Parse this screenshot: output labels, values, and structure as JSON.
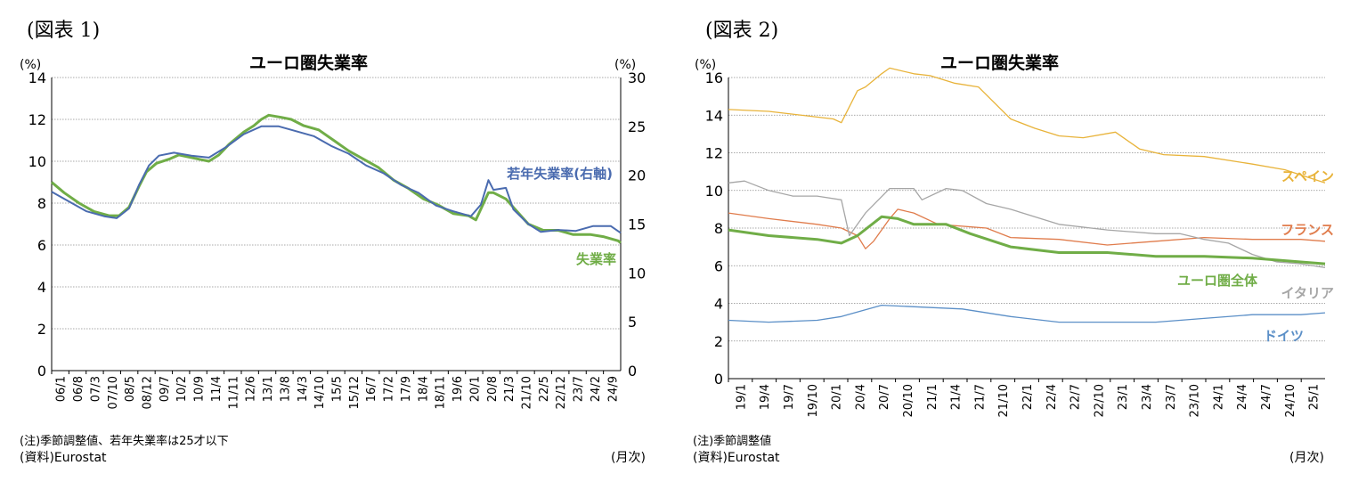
{
  "chart1": {
    "fig_label": "(図表 1)",
    "title": "ユーロ圏失業率",
    "left_unit": "(%)",
    "right_unit": "(%)",
    "note": "(注)季節調整値、若年失業率は25才以下",
    "source": "(資料)Eurostat",
    "period_label": "(月次)"
  },
  "chart2": {
    "fig_label": "(図表 2)",
    "title": "ユーロ圏失業率",
    "left_unit": "(%)",
    "note": "(注)季節調整値",
    "source": "(資料)Eurostat",
    "period_label": "(月次)"
  },
  "chart_data": [
    {
      "type": "line",
      "title": "ユーロ圏失業率",
      "x_start": "2006-01",
      "x_end": "2025-01",
      "x_tick_labels": [
        "06/1",
        "06/8",
        "07/3",
        "07/10",
        "08/5",
        "08/12",
        "09/7",
        "10/2",
        "10/9",
        "11/4",
        "11/11",
        "12/6",
        "13/1",
        "13/8",
        "14/3",
        "14/10",
        "15/5",
        "15/12",
        "16/7",
        "17/2",
        "17/9",
        "18/4",
        "18/11",
        "19/6",
        "20/1",
        "20/8",
        "21/3",
        "21/10",
        "22/5",
        "22/12",
        "23/7",
        "24/2",
        "24/9"
      ],
      "y_left": {
        "min": 0,
        "max": 14,
        "ticks": [
          0,
          2,
          4,
          6,
          8,
          10,
          12,
          14
        ]
      },
      "y_right": {
        "min": 0,
        "max": 30,
        "ticks": [
          0,
          5,
          10,
          15,
          20,
          25,
          30
        ]
      },
      "grid": true,
      "series": [
        {
          "name": "失業率",
          "axis": "left",
          "color": "#70ad47",
          "points": [
            [
              "2006-01",
              9.0
            ],
            [
              "2006-06",
              8.5
            ],
            [
              "2006-12",
              8.0
            ],
            [
              "2007-06",
              7.6
            ],
            [
              "2007-12",
              7.4
            ],
            [
              "2008-04",
              7.4
            ],
            [
              "2008-08",
              7.8
            ],
            [
              "2008-12",
              8.8
            ],
            [
              "2009-03",
              9.5
            ],
            [
              "2009-07",
              9.9
            ],
            [
              "2009-12",
              10.1
            ],
            [
              "2010-04",
              10.3
            ],
            [
              "2010-12",
              10.1
            ],
            [
              "2011-04",
              10.0
            ],
            [
              "2011-08",
              10.3
            ],
            [
              "2011-12",
              10.8
            ],
            [
              "2012-06",
              11.4
            ],
            [
              "2012-10",
              11.7
            ],
            [
              "2013-01",
              12.0
            ],
            [
              "2013-04",
              12.2
            ],
            [
              "2013-09",
              12.1
            ],
            [
              "2014-01",
              12.0
            ],
            [
              "2014-06",
              11.7
            ],
            [
              "2014-12",
              11.5
            ],
            [
              "2015-06",
              11.0
            ],
            [
              "2015-12",
              10.5
            ],
            [
              "2016-06",
              10.1
            ],
            [
              "2016-12",
              9.7
            ],
            [
              "2017-06",
              9.1
            ],
            [
              "2017-12",
              8.7
            ],
            [
              "2018-06",
              8.2
            ],
            [
              "2018-12",
              7.9
            ],
            [
              "2019-06",
              7.5
            ],
            [
              "2019-12",
              7.4
            ],
            [
              "2020-03",
              7.2
            ],
            [
              "2020-08",
              8.5
            ],
            [
              "2020-10",
              8.5
            ],
            [
              "2021-03",
              8.2
            ],
            [
              "2021-06",
              7.8
            ],
            [
              "2021-12",
              7.0
            ],
            [
              "2022-06",
              6.7
            ],
            [
              "2022-12",
              6.7
            ],
            [
              "2023-06",
              6.5
            ],
            [
              "2024-01",
              6.5
            ],
            [
              "2024-06",
              6.4
            ],
            [
              "2024-12",
              6.2
            ],
            [
              "2025-01",
              6.1
            ]
          ]
        },
        {
          "name": "若年失業率(右軸)",
          "axis": "right",
          "color": "#4a6baf",
          "points": [
            [
              "2006-01",
              18.3
            ],
            [
              "2006-08",
              17.3
            ],
            [
              "2007-03",
              16.3
            ],
            [
              "2007-10",
              15.8
            ],
            [
              "2008-03",
              15.6
            ],
            [
              "2008-08",
              16.6
            ],
            [
              "2008-12",
              19.0
            ],
            [
              "2009-04",
              21.0
            ],
            [
              "2009-08",
              22.0
            ],
            [
              "2010-02",
              22.3
            ],
            [
              "2010-09",
              22.0
            ],
            [
              "2011-04",
              21.8
            ],
            [
              "2011-11",
              22.9
            ],
            [
              "2012-06",
              24.2
            ],
            [
              "2013-01",
              25.0
            ],
            [
              "2013-08",
              25.0
            ],
            [
              "2014-03",
              24.5
            ],
            [
              "2014-10",
              24.0
            ],
            [
              "2015-05",
              23.0
            ],
            [
              "2015-12",
              22.2
            ],
            [
              "2016-07",
              21.0
            ],
            [
              "2017-02",
              20.2
            ],
            [
              "2017-09",
              19.0
            ],
            [
              "2018-04",
              18.2
            ],
            [
              "2018-11",
              16.9
            ],
            [
              "2019-06",
              16.3
            ],
            [
              "2020-01",
              15.8
            ],
            [
              "2020-05",
              17.0
            ],
            [
              "2020-08",
              19.5
            ],
            [
              "2020-10",
              18.5
            ],
            [
              "2021-03",
              18.7
            ],
            [
              "2021-06",
              16.5
            ],
            [
              "2021-12",
              15.0
            ],
            [
              "2022-05",
              14.2
            ],
            [
              "2022-12",
              14.4
            ],
            [
              "2023-07",
              14.3
            ],
            [
              "2024-02",
              14.8
            ],
            [
              "2024-09",
              14.8
            ],
            [
              "2025-01",
              14.1
            ]
          ]
        }
      ]
    },
    {
      "type": "line",
      "title": "ユーロ圏失業率",
      "x_start": "2019-01",
      "x_end": "2025-03",
      "x_tick_labels": [
        "19/1",
        "19/4",
        "19/7",
        "19/10",
        "20/1",
        "20/4",
        "20/7",
        "20/10",
        "21/1",
        "21/4",
        "21/7",
        "21/10",
        "22/1",
        "22/4",
        "22/7",
        "22/10",
        "23/1",
        "23/4",
        "23/7",
        "23/10",
        "24/1",
        "24/4",
        "24/7",
        "24/10",
        "25/1"
      ],
      "y_left": {
        "min": 0,
        "max": 16,
        "ticks": [
          0,
          2,
          4,
          6,
          8,
          10,
          12,
          14,
          16
        ]
      },
      "grid": true,
      "series": [
        {
          "name": "スペイン",
          "color": "#e8b33a",
          "points": [
            [
              "2019-01",
              14.3
            ],
            [
              "2019-06",
              14.2
            ],
            [
              "2019-12",
              13.9
            ],
            [
              "2020-02",
              13.8
            ],
            [
              "2020-03",
              13.6
            ],
            [
              "2020-05",
              15.3
            ],
            [
              "2020-06",
              15.5
            ],
            [
              "2020-08",
              16.2
            ],
            [
              "2020-09",
              16.5
            ],
            [
              "2020-12",
              16.2
            ],
            [
              "2021-02",
              16.1
            ],
            [
              "2021-05",
              15.7
            ],
            [
              "2021-08",
              15.5
            ],
            [
              "2021-12",
              13.8
            ],
            [
              "2022-03",
              13.3
            ],
            [
              "2022-06",
              12.9
            ],
            [
              "2022-09",
              12.8
            ],
            [
              "2023-01",
              13.1
            ],
            [
              "2023-04",
              12.2
            ],
            [
              "2023-07",
              11.9
            ],
            [
              "2023-12",
              11.8
            ],
            [
              "2024-06",
              11.4
            ],
            [
              "2024-10",
              11.1
            ],
            [
              "2025-03",
              10.4
            ]
          ]
        },
        {
          "name": "フランス",
          "color": "#e07c4c",
          "points": [
            [
              "2019-01",
              8.8
            ],
            [
              "2019-06",
              8.5
            ],
            [
              "2019-12",
              8.2
            ],
            [
              "2020-03",
              8.0
            ],
            [
              "2020-05",
              7.6
            ],
            [
              "2020-06",
              6.9
            ],
            [
              "2020-07",
              7.3
            ],
            [
              "2020-09",
              8.5
            ],
            [
              "2020-10",
              9.0
            ],
            [
              "2020-12",
              8.8
            ],
            [
              "2021-03",
              8.2
            ],
            [
              "2021-09",
              8.0
            ],
            [
              "2021-12",
              7.5
            ],
            [
              "2022-06",
              7.4
            ],
            [
              "2022-12",
              7.1
            ],
            [
              "2023-06",
              7.3
            ],
            [
              "2023-12",
              7.5
            ],
            [
              "2024-06",
              7.4
            ],
            [
              "2024-12",
              7.4
            ],
            [
              "2025-03",
              7.3
            ]
          ]
        },
        {
          "name": "イタリア",
          "color": "#a6a6a6",
          "points": [
            [
              "2019-01",
              10.4
            ],
            [
              "2019-03",
              10.5
            ],
            [
              "2019-06",
              10.0
            ],
            [
              "2019-09",
              9.7
            ],
            [
              "2019-12",
              9.7
            ],
            [
              "2020-03",
              9.5
            ],
            [
              "2020-04",
              7.6
            ],
            [
              "2020-06",
              8.8
            ],
            [
              "2020-09",
              10.1
            ],
            [
              "2020-12",
              10.1
            ],
            [
              "2021-01",
              9.5
            ],
            [
              "2021-04",
              10.1
            ],
            [
              "2021-06",
              10.0
            ],
            [
              "2021-09",
              9.3
            ],
            [
              "2021-12",
              9.0
            ],
            [
              "2022-06",
              8.2
            ],
            [
              "2022-12",
              7.9
            ],
            [
              "2023-06",
              7.7
            ],
            [
              "2023-09",
              7.7
            ],
            [
              "2023-12",
              7.4
            ],
            [
              "2024-03",
              7.2
            ],
            [
              "2024-06",
              6.6
            ],
            [
              "2024-09",
              6.2
            ],
            [
              "2024-12",
              6.1
            ],
            [
              "2025-03",
              5.9
            ]
          ]
        },
        {
          "name": "ユーロ圏全体",
          "color": "#70ad47",
          "points": [
            [
              "2019-01",
              7.9
            ],
            [
              "2019-06",
              7.6
            ],
            [
              "2019-12",
              7.4
            ],
            [
              "2020-03",
              7.2
            ],
            [
              "2020-05",
              7.6
            ],
            [
              "2020-08",
              8.6
            ],
            [
              "2020-10",
              8.5
            ],
            [
              "2020-12",
              8.2
            ],
            [
              "2021-04",
              8.2
            ],
            [
              "2021-07",
              7.7
            ],
            [
              "2021-12",
              7.0
            ],
            [
              "2022-06",
              6.7
            ],
            [
              "2022-12",
              6.7
            ],
            [
              "2023-06",
              6.5
            ],
            [
              "2023-12",
              6.5
            ],
            [
              "2024-06",
              6.4
            ],
            [
              "2024-12",
              6.2
            ],
            [
              "2025-03",
              6.1
            ]
          ]
        },
        {
          "name": "ドイツ",
          "color": "#5b8fc7",
          "points": [
            [
              "2019-01",
              3.1
            ],
            [
              "2019-06",
              3.0
            ],
            [
              "2019-12",
              3.1
            ],
            [
              "2020-03",
              3.3
            ],
            [
              "2020-08",
              3.9
            ],
            [
              "2021-06",
              3.7
            ],
            [
              "2021-12",
              3.3
            ],
            [
              "2022-06",
              3.0
            ],
            [
              "2022-12",
              3.0
            ],
            [
              "2023-06",
              3.0
            ],
            [
              "2023-12",
              3.2
            ],
            [
              "2024-06",
              3.4
            ],
            [
              "2024-12",
              3.4
            ],
            [
              "2025-03",
              3.5
            ]
          ]
        }
      ]
    }
  ]
}
